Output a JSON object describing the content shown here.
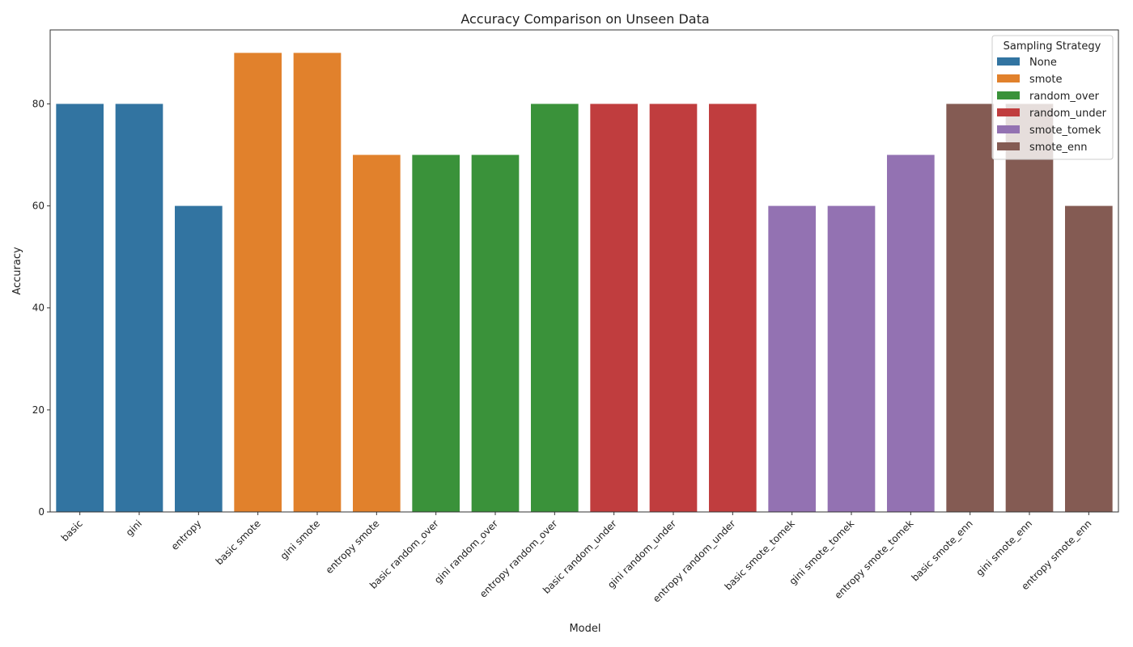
{
  "chart_data": {
    "type": "bar",
    "title": "Accuracy Comparison on Unseen Data",
    "xlabel": "Model",
    "ylabel": "Accuracy",
    "ylim": [
      0,
      94.5
    ],
    "yticks": [
      0,
      20,
      40,
      60,
      80
    ],
    "grid": false,
    "legend": {
      "title": "Sampling Strategy",
      "placement": "top-right",
      "entries": [
        {
          "name": "None",
          "color": "#3274a1"
        },
        {
          "name": "smote",
          "color": "#e1812c"
        },
        {
          "name": "random_over",
          "color": "#3a923a"
        },
        {
          "name": "random_under",
          "color": "#c03d3e"
        },
        {
          "name": "smote_tomek",
          "color": "#9372b2"
        },
        {
          "name": "smote_enn",
          "color": "#845b53"
        }
      ]
    },
    "categories": [
      "basic",
      "gini",
      "entropy",
      "basic smote",
      "gini smote",
      "entropy smote",
      "basic random_over",
      "gini random_over",
      "entropy random_over",
      "basic random_under",
      "gini random_under",
      "entropy random_under",
      "basic smote_tomek",
      "gini smote_tomek",
      "entropy smote_tomek",
      "basic smote_enn",
      "gini smote_enn",
      "entropy smote_enn"
    ],
    "values": [
      80,
      80,
      60,
      90,
      90,
      70,
      70,
      70,
      80,
      80,
      80,
      80,
      60,
      60,
      70,
      80,
      80,
      60
    ],
    "groups": [
      "None",
      "None",
      "None",
      "smote",
      "smote",
      "smote",
      "random_over",
      "random_over",
      "random_over",
      "random_under",
      "random_under",
      "random_under",
      "smote_tomek",
      "smote_tomek",
      "smote_tomek",
      "smote_enn",
      "smote_enn",
      "smote_enn"
    ]
  }
}
